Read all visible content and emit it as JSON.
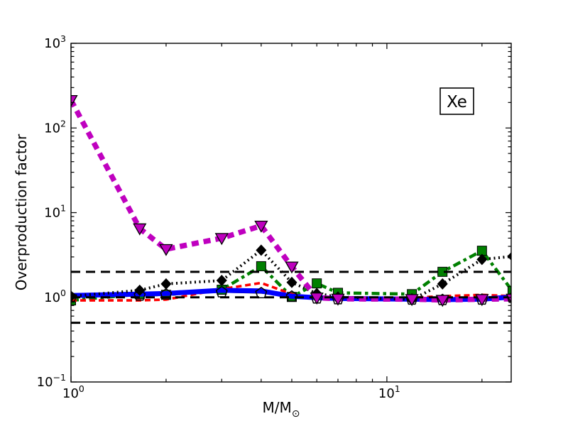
{
  "figure": {
    "isotope_label": "Xe",
    "ylabel": "Overproduction factor",
    "xlabel_main": "M/M",
    "xlabel_sun": "⊙",
    "background": "#ffffff",
    "frame_color": "#000000"
  },
  "chart_data": {
    "type": "line",
    "title": "",
    "xlabel": "M/M☉",
    "ylabel": "Overproduction factor",
    "x_scale": "log",
    "y_scale": "log",
    "xlim": [
      1,
      24.75
    ],
    "ylim": [
      0.1,
      1000
    ],
    "grid": false,
    "legend": "none",
    "annotation": "Xe",
    "x_ticks": [
      {
        "value": 1,
        "base": "10",
        "exp": "0"
      },
      {
        "value": 10,
        "base": "10",
        "exp": "1"
      }
    ],
    "y_ticks": [
      {
        "value": 1000,
        "base": "10",
        "exp": "3"
      },
      {
        "value": 100,
        "base": "10",
        "exp": "2"
      },
      {
        "value": 10,
        "base": "10",
        "exp": "1"
      },
      {
        "value": 1,
        "base": "10",
        "exp": "0"
      },
      {
        "value": 0.1,
        "base": "10",
        "exp": "−1"
      }
    ],
    "reference_lines": {
      "color": "#000000",
      "style": "dashed",
      "values": [
        2.0,
        1.0,
        0.5
      ]
    },
    "masses": [
      1.0,
      1.65,
      2.0,
      3.0,
      4.0,
      5.0,
      6.0,
      7.0,
      12.0,
      15.0,
      20.0,
      25.0
    ],
    "series": [
      {
        "name": "black-thin-pentagons",
        "color": "#000000",
        "line_style": "solid-thin",
        "marker": "pentagon-open",
        "marker_layer": "top",
        "values": [
          1.0,
          1.05,
          1.08,
          1.15,
          1.12,
          1.02,
          0.97,
          0.95,
          0.94,
          0.93,
          0.94,
          0.99
        ]
      },
      {
        "name": "green-dashdot-squares",
        "color": "#008000",
        "line_style": "dash-dot",
        "marker": "square",
        "marker_layer": "with-line",
        "values": [
          0.92,
          1.09,
          1.07,
          1.23,
          2.33,
          1.01,
          1.46,
          1.13,
          1.09,
          2.0,
          3.55,
          1.18
        ]
      },
      {
        "name": "red-dashed",
        "color": "#ff0000",
        "line_style": "dashed",
        "marker": "none",
        "marker_layer": "none",
        "values": [
          0.92,
          0.92,
          0.94,
          1.25,
          1.48,
          1.09,
          0.97,
          0.95,
          0.99,
          1.03,
          1.07,
          1.03
        ]
      },
      {
        "name": "blue-solid",
        "color": "#0000ff",
        "line_style": "solid-heavy",
        "marker": "none",
        "marker_layer": "none",
        "values": [
          1.05,
          1.09,
          1.11,
          1.21,
          1.19,
          1.03,
          0.99,
          0.97,
          0.95,
          0.94,
          0.95,
          1.01
        ]
      },
      {
        "name": "black-dotted-diamonds",
        "color": "#000000",
        "line_style": "dotted",
        "marker": "diamond",
        "marker_layer": "top",
        "values": [
          1.03,
          1.21,
          1.44,
          1.58,
          3.6,
          1.5,
          1.11,
          1.01,
          0.94,
          1.44,
          2.8,
          3.05
        ]
      },
      {
        "name": "magenta-dashed-triangles",
        "color": "#bf00bf",
        "line_style": "dashed-heavy",
        "marker": "triangle-down",
        "marker_layer": "top",
        "values": [
          213,
          6.5,
          3.7,
          5.0,
          7.0,
          2.3,
          0.99,
          0.96,
          0.95,
          0.93,
          0.95,
          0.96
        ]
      }
    ]
  }
}
